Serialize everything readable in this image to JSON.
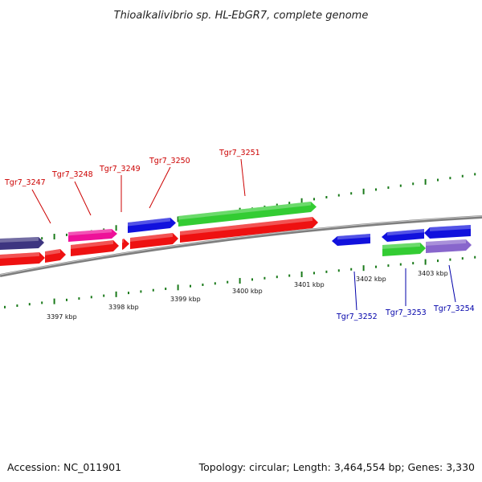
{
  "title": "Thioalkalivibrio sp. HL-EbGR7, complete genome",
  "footer": {
    "accession": "Accession: NC_011901",
    "summary": "Topology: circular; Length: 3,464,554 bp; Genes: 3,330"
  },
  "colors": {
    "backbone": "#888888",
    "tick": "#1a7a1a",
    "label_top": "#cc0000",
    "label_bottom": "#0000aa",
    "red": "#ee1111",
    "pink": "#ee1199",
    "blue": "#1111dd",
    "green": "#33cc33",
    "navy": "#3d3580",
    "lavender": "#8866cc"
  },
  "kbp_labels": [
    "3397 kbp",
    "3398 kbp",
    "3399 kbp",
    "3400 kbp",
    "3401 kbp",
    "3402 kbp",
    "3403 kbp"
  ],
  "gene_labels_top": [
    "Tgr7_3247",
    "Tgr7_3248",
    "Tgr7_3249",
    "Tgr7_3250",
    "Tgr7_3251"
  ],
  "gene_labels_bottom": [
    "Tgr7_3252",
    "Tgr7_3253",
    "Tgr7_3254"
  ]
}
